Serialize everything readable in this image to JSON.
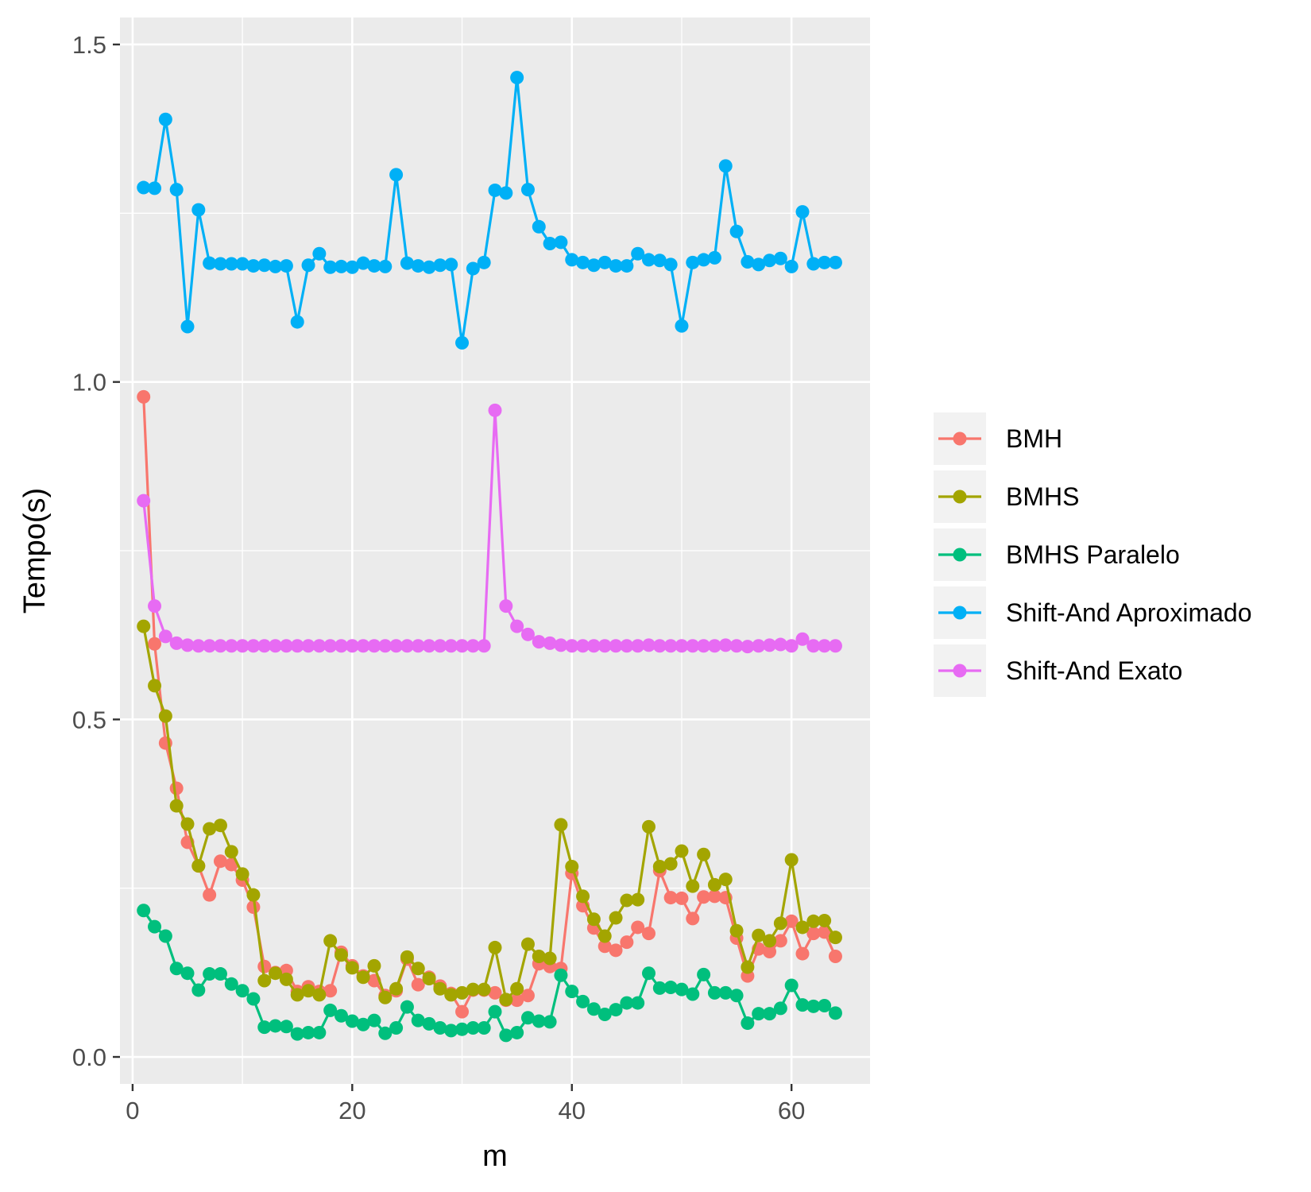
{
  "chart_data": {
    "type": "line",
    "title": "",
    "xlabel": "m",
    "ylabel": "Tempo(s)",
    "xlim": [
      -1.15,
      67.15
    ],
    "ylim": [
      -0.04,
      1.54
    ],
    "x_ticks": [
      0,
      20,
      40,
      60
    ],
    "x_tick_labels": [
      "0",
      "20",
      "40",
      "60"
    ],
    "x_minor_ticks": [
      10,
      30,
      50
    ],
    "y_ticks": [
      0.0,
      0.5,
      1.0,
      1.5
    ],
    "y_tick_labels": [
      "0.0",
      "0.5",
      "1.0",
      "1.5"
    ],
    "y_minor_ticks": [
      0.25,
      0.75,
      1.25
    ],
    "grid": true,
    "panel_background": "#ebebeb",
    "grid_color": "#ffffff",
    "legend_position": "right",
    "x": [
      1,
      2,
      3,
      4,
      5,
      6,
      7,
      8,
      9,
      10,
      11,
      12,
      13,
      14,
      15,
      16,
      17,
      18,
      19,
      20,
      21,
      22,
      23,
      24,
      25,
      26,
      27,
      28,
      29,
      30,
      31,
      32,
      33,
      34,
      35,
      36,
      37,
      38,
      39,
      40,
      41,
      42,
      43,
      44,
      45,
      46,
      47,
      48,
      49,
      50,
      51,
      52,
      53,
      54,
      55,
      56,
      57,
      58,
      59,
      60,
      61,
      62,
      63,
      64
    ],
    "series": [
      {
        "name": "BMH",
        "color": "#f8766d",
        "values": [
          0.978,
          0.612,
          0.465,
          0.398,
          0.318,
          0.283,
          0.24,
          0.29,
          0.285,
          0.262,
          0.222,
          0.134,
          0.125,
          0.128,
          0.097,
          0.104,
          0.097,
          0.098,
          0.155,
          0.135,
          0.12,
          0.113,
          0.091,
          0.098,
          0.145,
          0.107,
          0.118,
          0.105,
          0.094,
          0.067,
          0.099,
          0.099,
          0.095,
          0.084,
          0.084,
          0.091,
          0.138,
          0.134,
          0.131,
          0.272,
          0.224,
          0.191,
          0.164,
          0.158,
          0.17,
          0.192,
          0.183,
          0.276,
          0.236,
          0.235,
          0.205,
          0.237,
          0.238,
          0.236,
          0.176,
          0.12,
          0.16,
          0.156,
          0.172,
          0.201,
          0.153,
          0.183,
          0.185,
          0.149
        ]
      },
      {
        "name": "BMHS",
        "color": "#a3a500",
        "values": [
          0.638,
          0.55,
          0.505,
          0.372,
          0.345,
          0.283,
          0.338,
          0.343,
          0.304,
          0.271,
          0.24,
          0.113,
          0.124,
          0.115,
          0.092,
          0.098,
          0.092,
          0.172,
          0.151,
          0.132,
          0.118,
          0.135,
          0.088,
          0.101,
          0.148,
          0.131,
          0.116,
          0.101,
          0.092,
          0.095,
          0.1,
          0.1,
          0.162,
          0.085,
          0.101,
          0.167,
          0.149,
          0.146,
          0.344,
          0.282,
          0.238,
          0.204,
          0.179,
          0.206,
          0.232,
          0.233,
          0.341,
          0.282,
          0.286,
          0.305,
          0.253,
          0.3,
          0.255,
          0.263,
          0.187,
          0.133,
          0.18,
          0.172,
          0.198,
          0.292,
          0.192,
          0.201,
          0.202,
          0.177
        ]
      },
      {
        "name": "BMHS Paralelo",
        "color": "#00bf7d",
        "values": [
          0.217,
          0.193,
          0.179,
          0.131,
          0.124,
          0.099,
          0.123,
          0.123,
          0.108,
          0.098,
          0.086,
          0.044,
          0.046,
          0.045,
          0.034,
          0.036,
          0.036,
          0.069,
          0.061,
          0.053,
          0.048,
          0.054,
          0.035,
          0.043,
          0.074,
          0.054,
          0.049,
          0.043,
          0.039,
          0.041,
          0.043,
          0.043,
          0.067,
          0.032,
          0.036,
          0.058,
          0.053,
          0.052,
          0.121,
          0.097,
          0.082,
          0.071,
          0.063,
          0.07,
          0.08,
          0.08,
          0.124,
          0.102,
          0.103,
          0.1,
          0.093,
          0.122,
          0.095,
          0.095,
          0.091,
          0.05,
          0.064,
          0.064,
          0.072,
          0.106,
          0.077,
          0.075,
          0.076,
          0.065
        ]
      },
      {
        "name": "Shift-And Aproximado",
        "color": "#00b0f6",
        "values": [
          1.288,
          1.287,
          1.389,
          1.285,
          1.082,
          1.255,
          1.176,
          1.175,
          1.175,
          1.175,
          1.172,
          1.173,
          1.171,
          1.172,
          1.089,
          1.173,
          1.19,
          1.17,
          1.171,
          1.17,
          1.176,
          1.172,
          1.171,
          1.307,
          1.176,
          1.172,
          1.17,
          1.173,
          1.174,
          1.058,
          1.168,
          1.177,
          1.284,
          1.28,
          1.451,
          1.285,
          1.23,
          1.205,
          1.207,
          1.181,
          1.177,
          1.173,
          1.177,
          1.172,
          1.172,
          1.19,
          1.181,
          1.18,
          1.174,
          1.083,
          1.177,
          1.181,
          1.184,
          1.32,
          1.223,
          1.178,
          1.174,
          1.18,
          1.183,
          1.171,
          1.252,
          1.175,
          1.177,
          1.177
        ]
      },
      {
        "name": "Shift-And Exato",
        "color": "#e76bf3",
        "values": [
          0.824,
          0.668,
          0.623,
          0.613,
          0.61,
          0.609,
          0.609,
          0.609,
          0.609,
          0.609,
          0.609,
          0.609,
          0.609,
          0.609,
          0.609,
          0.609,
          0.609,
          0.609,
          0.609,
          0.609,
          0.609,
          0.609,
          0.609,
          0.609,
          0.609,
          0.609,
          0.609,
          0.609,
          0.609,
          0.609,
          0.609,
          0.609,
          0.958,
          0.668,
          0.638,
          0.626,
          0.615,
          0.613,
          0.61,
          0.609,
          0.609,
          0.609,
          0.609,
          0.609,
          0.609,
          0.609,
          0.61,
          0.609,
          0.609,
          0.609,
          0.609,
          0.609,
          0.609,
          0.61,
          0.609,
          0.608,
          0.609,
          0.61,
          0.611,
          0.609,
          0.619,
          0.609,
          0.609,
          0.609
        ]
      }
    ]
  }
}
